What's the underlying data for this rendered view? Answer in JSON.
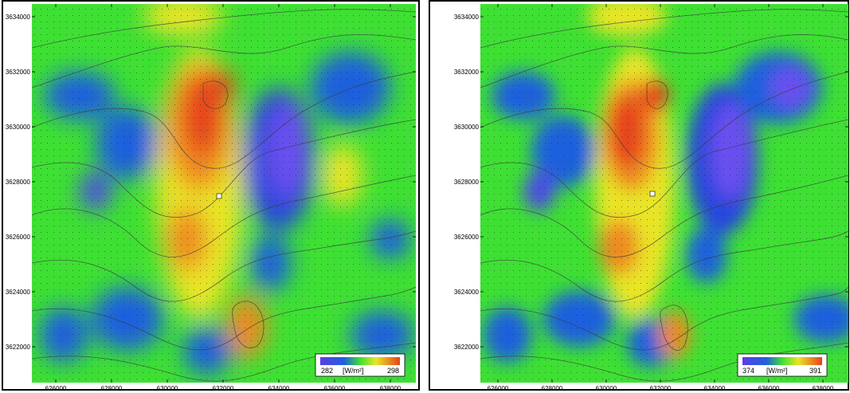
{
  "colors": {
    "low": "#5a3fe6",
    "mid_blue": "#1f60dd",
    "green": "#3ee033",
    "yellow": "#e9e528",
    "orange": "#ee8a22",
    "high": "#e6421c"
  },
  "maps": [
    {
      "id": "left",
      "x_ticks": [
        "626000",
        "628000",
        "630000",
        "632000",
        "634000",
        "636000",
        "638000"
      ],
      "y_ticks": [
        "3634000",
        "3632000",
        "3630000",
        "3628000",
        "3626000",
        "3624000",
        "3622000"
      ],
      "legend": {
        "min": "282",
        "unit": "[W/m²]",
        "max": "298"
      }
    },
    {
      "id": "right",
      "x_ticks": [
        "626000",
        "628000",
        "630000",
        "632000",
        "634000",
        "636000",
        "638000"
      ],
      "y_ticks": [
        "3634000",
        "3632000",
        "3630000",
        "3628000",
        "3626000",
        "3624000",
        "3622000"
      ],
      "legend": {
        "min": "374",
        "unit": "[W/m²]",
        "max": "391"
      }
    }
  ]
}
